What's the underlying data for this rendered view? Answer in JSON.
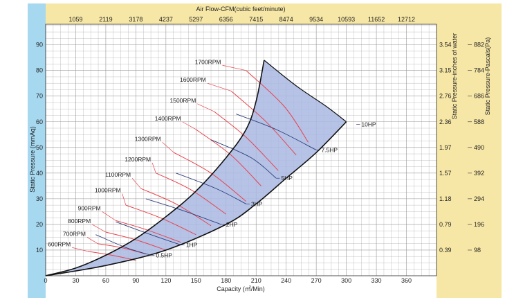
{
  "chart_data": {
    "type": "line",
    "xlabel": "Capacity (㎥/Min)",
    "ylabel": "Static Pressure (mmAq)",
    "x2label": "Air Flow-CFM(cubic feet/minute)",
    "y2label": "Static Pressure-inches of water",
    "y3label": "Static Pressure-Pascals(Pa)",
    "xlim": [
      0,
      390
    ],
    "ylim": [
      0,
      98
    ],
    "x_ticks": [
      "0",
      "30",
      "60",
      "90",
      "120",
      "150",
      "180",
      "210",
      "240",
      "270",
      "300",
      "330",
      "360"
    ],
    "y_ticks": [
      "10",
      "20",
      "30",
      "40",
      "50",
      "60",
      "70",
      "80",
      "90"
    ],
    "top_ticks": [
      "1059",
      "2119",
      "3178",
      "4237",
      "5297",
      "6356",
      "7415",
      "8474",
      "9534",
      "10593",
      "11652",
      "12712"
    ],
    "right_inch_ticks": [
      "0.39",
      "0.79",
      "1.18",
      "1.57",
      "1.97",
      "2.36",
      "2.76",
      "3.15",
      "3.54"
    ],
    "right_pa_ticks": [
      "98",
      "196",
      "294",
      "392",
      "490",
      "588",
      "686",
      "784",
      "882"
    ],
    "grid": true,
    "colors": {
      "top_band": "#f7e7a6",
      "left_band": "#a6d8f0",
      "right_band": "#f7e7a6",
      "region_fill": "#a9b9e3",
      "rpm_curve": "#e8424c",
      "hp_curve": "#2d3d7a",
      "boundary": "#111111",
      "grid": "#999999"
    },
    "envelope": {
      "upper": [
        [
          0,
          0
        ],
        [
          30,
          3
        ],
        [
          60,
          8
        ],
        [
          90,
          14.5
        ],
        [
          120,
          23
        ],
        [
          150,
          33
        ],
        [
          180,
          46
        ],
        [
          200,
          57
        ],
        [
          210,
          68
        ],
        [
          218,
          84
        ]
      ],
      "lower": [
        [
          0,
          0
        ],
        [
          60,
          4
        ],
        [
          120,
          10
        ],
        [
          180,
          20
        ],
        [
          210,
          28
        ],
        [
          240,
          38
        ],
        [
          270,
          48
        ],
        [
          300,
          60
        ]
      ],
      "end": [
        [
          218,
          84
        ],
        [
          250,
          74
        ],
        [
          280,
          66
        ],
        [
          300,
          60
        ]
      ]
    },
    "rpm_curves": [
      {
        "name": "600RPM",
        "label_at": [
          25,
          11
        ],
        "points": [
          [
            42,
            9.5
          ],
          [
            66,
            8
          ],
          [
            90,
            6
          ]
        ]
      },
      {
        "name": "700RPM",
        "label_at": [
          40,
          15
        ],
        "points": [
          [
            52,
            12.5
          ],
          [
            75,
            11
          ],
          [
            100,
            8.5
          ]
        ]
      },
      {
        "name": "800RPM",
        "label_at": [
          45,
          20
        ],
        "points": [
          [
            60,
            17
          ],
          [
            90,
            14
          ],
          [
            120,
            10
          ]
        ]
      },
      {
        "name": "900RPM",
        "label_at": [
          55,
          25
        ],
        "points": [
          [
            70,
            21.5
          ],
          [
            100,
            18
          ],
          [
            135,
            13
          ]
        ]
      },
      {
        "name": "1000RPM",
        "label_at": [
          75,
          32
        ],
        "points": [
          [
            80,
            27.5
          ],
          [
            115,
            22.5
          ],
          [
            150,
            16
          ]
        ]
      },
      {
        "name": "1100RPM",
        "label_at": [
          85,
          38
        ],
        "points": [
          [
            95,
            34
          ],
          [
            130,
            28
          ],
          [
            165,
            19.5
          ]
        ]
      },
      {
        "name": "1200RPM",
        "label_at": [
          105,
          44
        ],
        "points": [
          [
            110,
            40
          ],
          [
            145,
            33.5
          ],
          [
            180,
            24
          ]
        ]
      },
      {
        "name": "1300RPM",
        "label_at": [
          115,
          52
        ],
        "points": [
          [
            128,
            48
          ],
          [
            165,
            40
          ],
          [
            200,
            29
          ]
        ]
      },
      {
        "name": "1400RPM",
        "label_at": [
          135,
          60
        ],
        "points": [
          [
            150,
            57
          ],
          [
            185,
            47
          ],
          [
            215,
            35
          ]
        ]
      },
      {
        "name": "1500RPM",
        "label_at": [
          150,
          67
        ],
        "points": [
          [
            168,
            64
          ],
          [
            200,
            54
          ],
          [
            232,
            41
          ]
        ]
      },
      {
        "name": "1600RPM",
        "label_at": [
          160,
          75
        ],
        "points": [
          [
            185,
            72
          ],
          [
            220,
            60
          ],
          [
            250,
            47
          ]
        ]
      },
      {
        "name": "1700RPM",
        "label_at": [
          175,
          82
        ],
        "points": [
          [
            200,
            80
          ],
          [
            238,
            66
          ],
          [
            262,
            52
          ]
        ]
      }
    ],
    "hp_curves": [
      {
        "name": "0.5HP",
        "label_at": [
          110,
          8
        ],
        "points": [
          [
            50,
            16
          ],
          [
            80,
            11
          ],
          [
            105,
            8
          ]
        ]
      },
      {
        "name": "1HP",
        "label_at": [
          140,
          12
        ],
        "points": [
          [
            70,
            21
          ],
          [
            105,
            16
          ],
          [
            135,
            12
          ]
        ]
      },
      {
        "name": "2HP",
        "label_at": [
          180,
          20
        ],
        "points": [
          [
            100,
            30
          ],
          [
            140,
            25
          ],
          [
            175,
            20
          ]
        ]
      },
      {
        "name": "3HP",
        "label_at": [
          205,
          28
        ],
        "points": [
          [
            130,
            40
          ],
          [
            170,
            34
          ],
          [
            200,
            28
          ]
        ]
      },
      {
        "name": "5HP",
        "label_at": [
          235,
          38
        ],
        "points": [
          [
            165,
            53
          ],
          [
            205,
            46
          ],
          [
            230,
            38
          ]
        ]
      },
      {
        "name": "7.5HP",
        "label_at": [
          275,
          49
        ],
        "points": [
          [
            190,
            63
          ],
          [
            230,
            57
          ],
          [
            270,
            49
          ]
        ]
      },
      {
        "name": "10HP",
        "label_at": [
          315,
          59
        ],
        "points": [
          [
            300,
            60
          ],
          [
            310,
            59
          ]
        ]
      }
    ]
  }
}
